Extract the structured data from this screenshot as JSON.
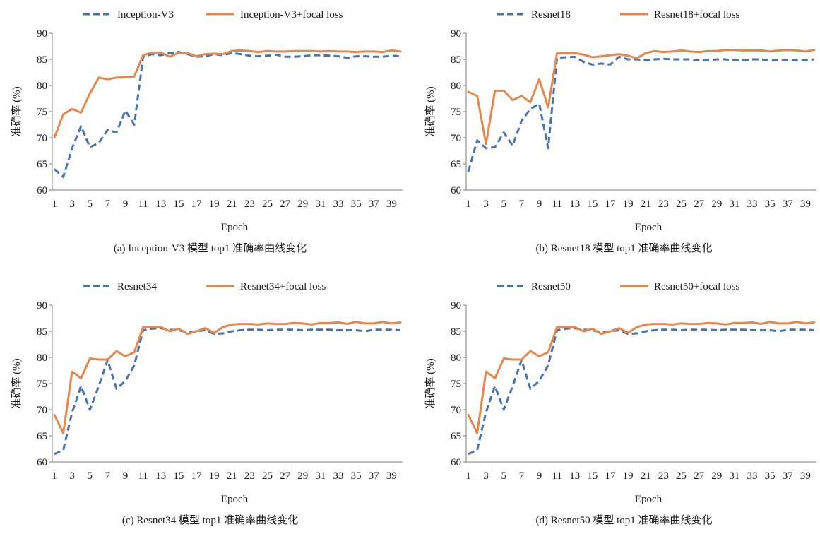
{
  "colors": {
    "baseline": "#4a72ad",
    "focal": "#e4884d"
  },
  "chart_data": [
    {
      "type": "line",
      "caption": "(a) Inception-V3 模型 top1 准确率曲线变化",
      "xlabel": "Epoch",
      "ylabel": "准确率 (%)",
      "ylim": [
        60,
        90
      ],
      "yticks": [
        60,
        65,
        70,
        75,
        80,
        85,
        90
      ],
      "x": [
        1,
        2,
        3,
        4,
        5,
        6,
        7,
        8,
        9,
        10,
        11,
        12,
        13,
        14,
        15,
        16,
        17,
        18,
        19,
        20,
        21,
        22,
        23,
        24,
        25,
        26,
        27,
        28,
        29,
        30,
        31,
        32,
        33,
        34,
        35,
        36,
        37,
        38,
        39,
        40
      ],
      "xtick_labels": [
        1,
        3,
        5,
        7,
        9,
        11,
        13,
        15,
        17,
        19,
        21,
        23,
        25,
        27,
        29,
        31,
        33,
        35,
        37,
        39
      ],
      "legend_position": "top",
      "series": [
        {
          "name": "Inception-V3",
          "style": "dashed",
          "values": [
            64.0,
            62.5,
            68.0,
            72.2,
            68.2,
            69.0,
            71.5,
            71.0,
            75.2,
            72.5,
            85.5,
            86.0,
            85.8,
            86.2,
            86.4,
            86.0,
            85.5,
            85.6,
            86.0,
            85.8,
            86.2,
            86.0,
            85.7,
            85.6,
            85.7,
            85.9,
            85.5,
            85.5,
            85.6,
            85.8,
            85.8,
            85.7,
            85.6,
            85.3,
            85.6,
            85.6,
            85.5,
            85.5,
            85.7,
            85.6
          ]
        },
        {
          "name": "Inception-V3+focal loss",
          "style": "solid",
          "values": [
            70.0,
            74.5,
            75.5,
            74.8,
            78.5,
            81.5,
            81.2,
            81.5,
            81.6,
            81.7,
            85.8,
            86.3,
            86.3,
            85.5,
            86.3,
            86.2,
            85.6,
            86.0,
            86.1,
            86.0,
            86.6,
            86.7,
            86.6,
            86.4,
            86.6,
            86.5,
            86.5,
            86.6,
            86.6,
            86.6,
            86.5,
            86.6,
            86.5,
            86.5,
            86.4,
            86.5,
            86.5,
            86.4,
            86.7,
            86.5
          ]
        }
      ]
    },
    {
      "type": "line",
      "caption": "(b) Resnet18 模型 top1 准确率曲线变化",
      "xlabel": "Epoch",
      "ylabel": "准确率 (%)",
      "ylim": [
        60,
        90
      ],
      "yticks": [
        60,
        65,
        70,
        75,
        80,
        85,
        90
      ],
      "x": [
        1,
        2,
        3,
        4,
        5,
        6,
        7,
        8,
        9,
        10,
        11,
        12,
        13,
        14,
        15,
        16,
        17,
        18,
        19,
        20,
        21,
        22,
        23,
        24,
        25,
        26,
        27,
        28,
        29,
        30,
        31,
        32,
        33,
        34,
        35,
        36,
        37,
        38,
        39,
        40
      ],
      "xtick_labels": [
        1,
        3,
        5,
        7,
        9,
        11,
        13,
        15,
        17,
        19,
        21,
        23,
        25,
        27,
        29,
        31,
        33,
        35,
        37,
        39
      ],
      "legend_position": "top",
      "series": [
        {
          "name": "Resnet18",
          "style": "dashed",
          "values": [
            63.5,
            69.5,
            68.0,
            68.2,
            71.0,
            68.5,
            73.2,
            75.5,
            76.5,
            68.0,
            85.3,
            85.4,
            85.5,
            84.5,
            84.0,
            84.2,
            84.0,
            85.5,
            85.0,
            85.0,
            84.8,
            85.0,
            85.1,
            85.0,
            85.0,
            85.0,
            84.8,
            84.8,
            85.0,
            85.0,
            84.8,
            84.8,
            85.0,
            85.0,
            84.8,
            84.9,
            84.9,
            84.8,
            84.8,
            85.0
          ]
        },
        {
          "name": "Resnet18+focal loss",
          "style": "solid",
          "values": [
            78.8,
            78.0,
            68.8,
            79.0,
            79.0,
            77.2,
            78.0,
            76.8,
            81.2,
            75.8,
            86.2,
            86.2,
            86.2,
            85.9,
            85.4,
            85.6,
            85.8,
            86.0,
            85.7,
            85.2,
            86.2,
            86.6,
            86.4,
            86.5,
            86.7,
            86.5,
            86.4,
            86.6,
            86.6,
            86.8,
            86.8,
            86.7,
            86.7,
            86.7,
            86.5,
            86.7,
            86.8,
            86.7,
            86.5,
            86.8
          ]
        }
      ]
    },
    {
      "type": "line",
      "caption": "(c) Resnet34 模型 top1 准确率曲线变化",
      "xlabel": "Epoch",
      "ylabel": "准确率 (%)",
      "ylim": [
        60,
        90
      ],
      "yticks": [
        60,
        65,
        70,
        75,
        80,
        85,
        90
      ],
      "x": [
        1,
        2,
        3,
        4,
        5,
        6,
        7,
        8,
        9,
        10,
        11,
        12,
        13,
        14,
        15,
        16,
        17,
        18,
        19,
        20,
        21,
        22,
        23,
        24,
        25,
        26,
        27,
        28,
        29,
        30,
        31,
        32,
        33,
        34,
        35,
        36,
        37,
        38,
        39,
        40
      ],
      "xtick_labels": [
        1,
        3,
        5,
        7,
        9,
        11,
        13,
        15,
        17,
        19,
        21,
        23,
        25,
        27,
        29,
        31,
        33,
        35,
        37,
        39
      ],
      "legend_position": "top",
      "series": [
        {
          "name": "Resnet34",
          "style": "dashed",
          "values": [
            61.5,
            62.3,
            69.5,
            74.5,
            70.0,
            74.5,
            79.5,
            74.0,
            75.5,
            78.5,
            85.2,
            85.5,
            85.6,
            85.3,
            85.2,
            84.8,
            85.0,
            85.2,
            84.5,
            84.6,
            85.0,
            85.2,
            85.3,
            85.3,
            85.2,
            85.3,
            85.3,
            85.3,
            85.2,
            85.3,
            85.3,
            85.3,
            85.2,
            85.2,
            85.2,
            85.0,
            85.3,
            85.3,
            85.3,
            85.2
          ]
        },
        {
          "name": "Resnet34+focal loss",
          "style": "solid",
          "values": [
            69.0,
            65.5,
            77.3,
            76.0,
            79.8,
            79.6,
            79.6,
            81.2,
            80.2,
            81.0,
            85.8,
            85.8,
            85.8,
            85.0,
            85.5,
            84.5,
            85.0,
            85.6,
            84.7,
            85.8,
            86.3,
            86.4,
            86.4,
            86.3,
            86.5,
            86.4,
            86.4,
            86.6,
            86.5,
            86.3,
            86.6,
            86.6,
            86.7,
            86.4,
            86.8,
            86.5,
            86.5,
            86.8,
            86.5,
            86.7
          ]
        }
      ]
    },
    {
      "type": "line",
      "caption": "(d) Resnet50 模型 top1 准确率曲线变化",
      "xlabel": "Epoch",
      "ylabel": "准确率 (%)",
      "ylim": [
        60,
        90
      ],
      "yticks": [
        60,
        65,
        70,
        75,
        80,
        85,
        90
      ],
      "x": [
        1,
        2,
        3,
        4,
        5,
        6,
        7,
        8,
        9,
        10,
        11,
        12,
        13,
        14,
        15,
        16,
        17,
        18,
        19,
        20,
        21,
        22,
        23,
        24,
        25,
        26,
        27,
        28,
        29,
        30,
        31,
        32,
        33,
        34,
        35,
        36,
        37,
        38,
        39,
        40
      ],
      "xtick_labels": [
        1,
        3,
        5,
        7,
        9,
        11,
        13,
        15,
        17,
        19,
        21,
        23,
        25,
        27,
        29,
        31,
        33,
        35,
        37,
        39
      ],
      "legend_position": "top",
      "series": [
        {
          "name": "Resnet50",
          "style": "dashed",
          "values": [
            61.5,
            62.3,
            69.5,
            74.5,
            70.0,
            74.5,
            79.5,
            74.0,
            75.5,
            78.5,
            85.2,
            85.5,
            85.6,
            85.3,
            85.2,
            84.8,
            85.0,
            85.2,
            84.5,
            84.6,
            85.0,
            85.2,
            85.3,
            85.3,
            85.2,
            85.3,
            85.3,
            85.3,
            85.2,
            85.3,
            85.3,
            85.3,
            85.2,
            85.2,
            85.2,
            85.0,
            85.3,
            85.3,
            85.3,
            85.2
          ]
        },
        {
          "name": "Resnet50+focal loss",
          "style": "solid",
          "values": [
            69.0,
            65.5,
            77.3,
            76.0,
            79.8,
            79.6,
            79.6,
            81.2,
            80.2,
            81.0,
            85.8,
            85.8,
            85.8,
            85.0,
            85.5,
            84.5,
            85.0,
            85.6,
            84.7,
            85.8,
            86.3,
            86.4,
            86.4,
            86.3,
            86.5,
            86.4,
            86.4,
            86.6,
            86.5,
            86.3,
            86.6,
            86.6,
            86.7,
            86.4,
            86.8,
            86.5,
            86.5,
            86.8,
            86.5,
            86.7
          ]
        }
      ]
    }
  ]
}
